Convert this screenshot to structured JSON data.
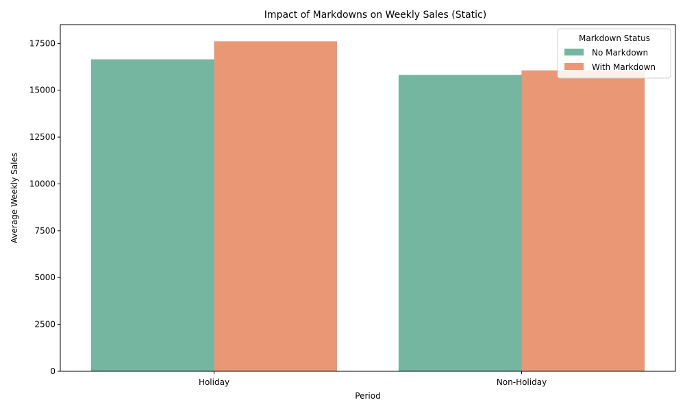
{
  "chart_data": {
    "type": "bar",
    "title": "Impact of Markdowns on Weekly Sales (Static)",
    "xlabel": "Period",
    "ylabel": "Average Weekly Sales",
    "categories": [
      "Holiday",
      "Non-Holiday"
    ],
    "series": [
      {
        "name": "No Markdown",
        "values": [
          16650,
          15820
        ],
        "color": "#74b6a0"
      },
      {
        "name": "With Markdown",
        "values": [
          17610,
          16060
        ],
        "color": "#e99774"
      }
    ],
    "ylim": [
      0,
      18500
    ],
    "yticks": [
      0,
      2500,
      5000,
      7500,
      10000,
      12500,
      15000,
      17500
    ],
    "legend": {
      "title": "Markdown Status",
      "position": "top-right"
    },
    "grid": false
  }
}
